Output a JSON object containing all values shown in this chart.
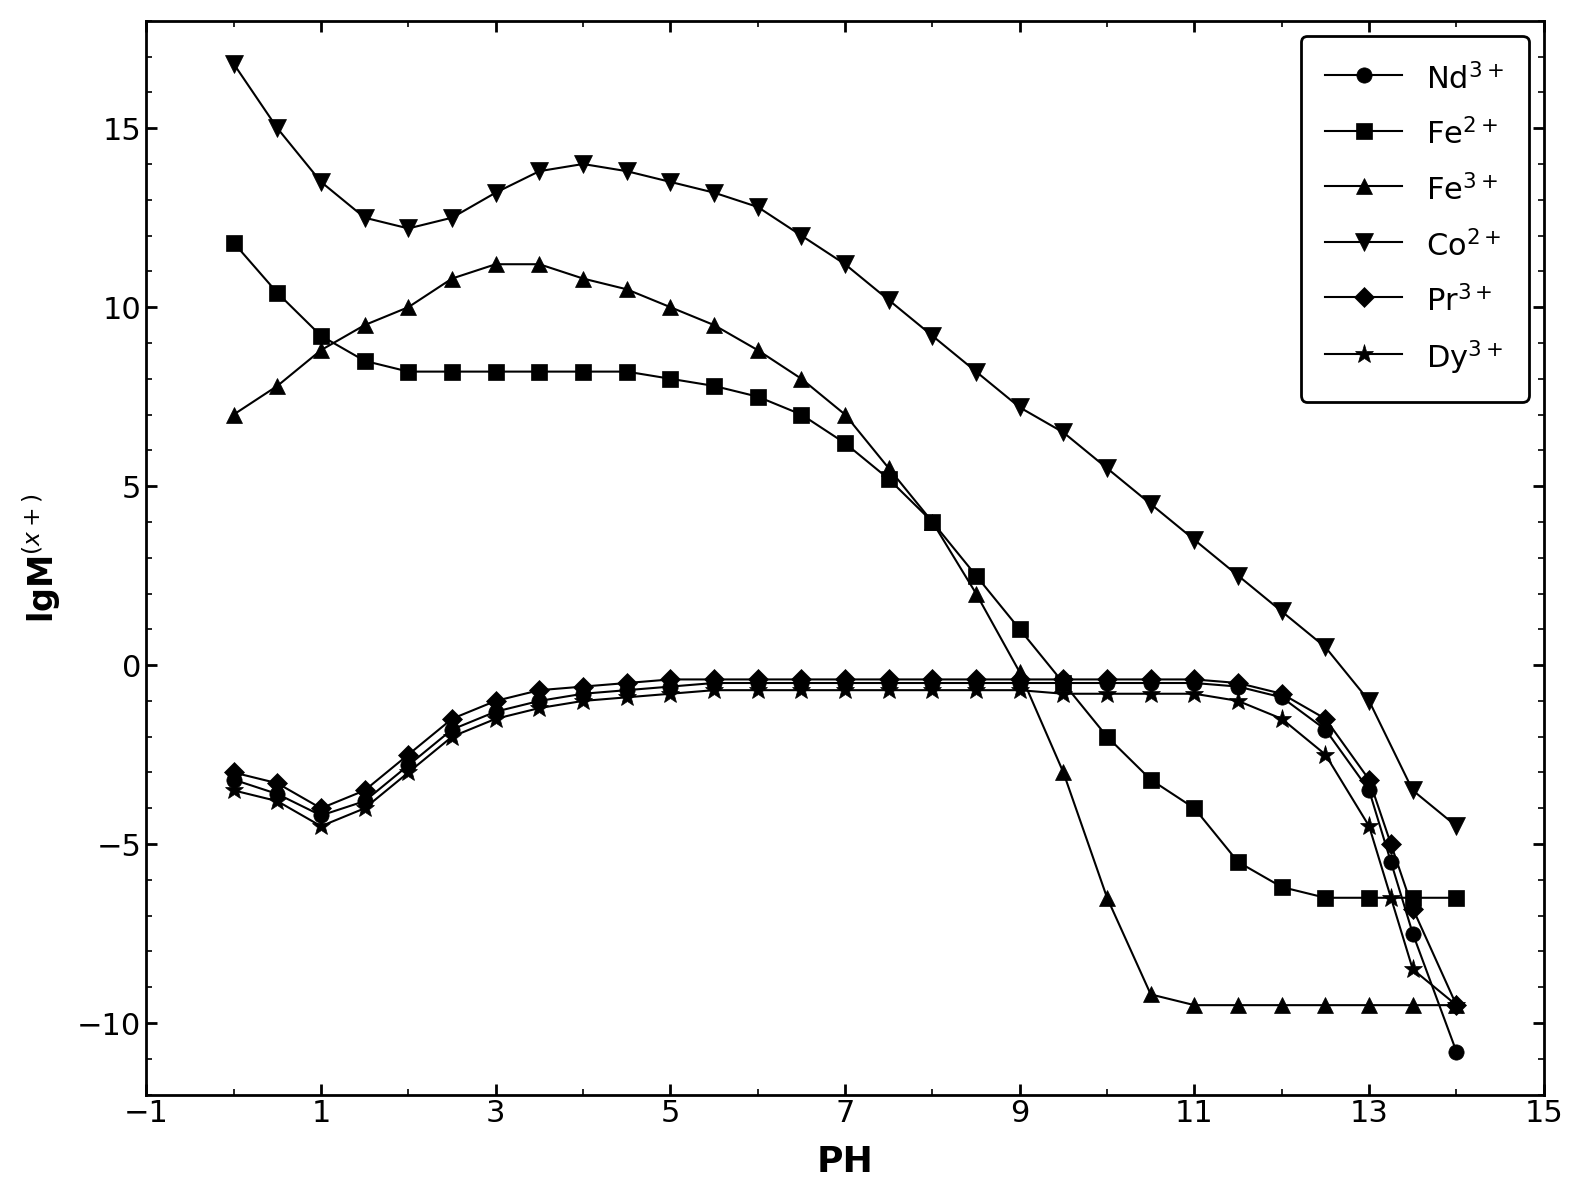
{
  "title": "",
  "xlabel": "PH",
  "ylabel": "lgM$^{(x+)}$",
  "xlim": [
    -1,
    15
  ],
  "ylim": [
    -12,
    18
  ],
  "yticks": [
    -10,
    -5,
    0,
    5,
    10,
    15
  ],
  "xticks": [
    -1,
    1,
    3,
    5,
    7,
    9,
    11,
    13,
    15
  ],
  "series": {
    "Nd3+": {
      "marker": "o",
      "label": "Nd$^{3+}$",
      "x": [
        0.0,
        0.5,
        1.0,
        1.5,
        2.0,
        2.5,
        3.0,
        3.5,
        4.0,
        4.5,
        5.0,
        5.5,
        6.0,
        6.5,
        7.0,
        7.5,
        8.0,
        8.5,
        9.0,
        9.5,
        10.0,
        10.5,
        11.0,
        11.5,
        12.0,
        12.5,
        13.0,
        13.25,
        13.5,
        14.0
      ],
      "y": [
        -3.2,
        -3.6,
        -4.2,
        -3.8,
        -2.8,
        -1.8,
        -1.3,
        -1.0,
        -0.8,
        -0.7,
        -0.6,
        -0.5,
        -0.5,
        -0.5,
        -0.5,
        -0.5,
        -0.5,
        -0.5,
        -0.5,
        -0.5,
        -0.5,
        -0.5,
        -0.5,
        -0.6,
        -0.9,
        -1.8,
        -3.5,
        -5.5,
        -7.5,
        -10.8
      ]
    },
    "Fe2+": {
      "marker": "s",
      "label": "Fe$^{2+}$",
      "x": [
        0.0,
        0.5,
        1.0,
        1.5,
        2.0,
        2.5,
        3.0,
        3.5,
        4.0,
        4.5,
        5.0,
        5.5,
        6.0,
        6.5,
        7.0,
        7.5,
        8.0,
        8.5,
        9.0,
        9.5,
        10.0,
        10.5,
        11.0,
        11.5,
        12.0,
        12.5,
        13.0,
        13.5,
        14.0
      ],
      "y": [
        11.8,
        10.4,
        9.2,
        8.5,
        8.2,
        8.2,
        8.2,
        8.2,
        8.2,
        8.2,
        8.0,
        7.8,
        7.5,
        7.0,
        6.2,
        5.2,
        4.0,
        2.5,
        1.0,
        -0.5,
        -2.0,
        -3.2,
        -4.0,
        -5.5,
        -6.2,
        -6.5,
        -6.5,
        -6.5,
        -6.5
      ]
    },
    "Fe3+": {
      "marker": "^",
      "label": "Fe$^{3+}$",
      "x": [
        0.0,
        0.5,
        1.0,
        1.5,
        2.0,
        2.5,
        3.0,
        3.5,
        4.0,
        4.5,
        5.0,
        5.5,
        6.0,
        6.5,
        7.0,
        7.5,
        8.0,
        8.5,
        9.0,
        9.5,
        10.0,
        10.5,
        11.0,
        11.5,
        12.0,
        12.5,
        13.0,
        13.5,
        14.0
      ],
      "y": [
        7.0,
        7.8,
        8.8,
        9.5,
        10.0,
        10.8,
        11.2,
        11.2,
        10.8,
        10.5,
        10.0,
        9.5,
        8.8,
        8.0,
        7.0,
        5.5,
        4.0,
        2.0,
        -0.2,
        -3.0,
        -6.5,
        -9.2,
        -9.5,
        -9.5,
        -9.5,
        -9.5,
        -9.5,
        -9.5,
        -9.5
      ]
    },
    "Co2+": {
      "marker": "v",
      "label": "Co$^{2+}$",
      "x": [
        0.0,
        0.5,
        1.0,
        1.5,
        2.0,
        2.5,
        3.0,
        3.5,
        4.0,
        4.5,
        5.0,
        5.5,
        6.0,
        6.5,
        7.0,
        7.5,
        8.0,
        8.5,
        9.0,
        9.5,
        10.0,
        10.5,
        11.0,
        11.5,
        12.0,
        12.5,
        13.0,
        13.5,
        14.0
      ],
      "y": [
        16.8,
        15.0,
        13.5,
        12.5,
        12.2,
        12.5,
        13.2,
        13.8,
        14.0,
        13.8,
        13.5,
        13.2,
        12.8,
        12.0,
        11.2,
        10.2,
        9.2,
        8.2,
        7.2,
        6.5,
        5.5,
        4.5,
        3.5,
        2.5,
        1.5,
        0.5,
        -1.0,
        -3.5,
        -4.5
      ]
    },
    "Pr3+": {
      "marker": "D",
      "label": "Pr$^{3+}$",
      "x": [
        0.0,
        0.5,
        1.0,
        1.5,
        2.0,
        2.5,
        3.0,
        3.5,
        4.0,
        4.5,
        5.0,
        5.5,
        6.0,
        6.5,
        7.0,
        7.5,
        8.0,
        8.5,
        9.0,
        9.5,
        10.0,
        10.5,
        11.0,
        11.5,
        12.0,
        12.5,
        13.0,
        13.25,
        13.5,
        14.0
      ],
      "y": [
        -3.0,
        -3.3,
        -4.0,
        -3.5,
        -2.5,
        -1.5,
        -1.0,
        -0.7,
        -0.6,
        -0.5,
        -0.4,
        -0.4,
        -0.4,
        -0.4,
        -0.4,
        -0.4,
        -0.4,
        -0.4,
        -0.4,
        -0.4,
        -0.4,
        -0.4,
        -0.4,
        -0.5,
        -0.8,
        -1.5,
        -3.2,
        -5.0,
        -6.8,
        -9.5
      ]
    },
    "Dy3+": {
      "marker": "*",
      "label": "Dy$^{3+}$",
      "x": [
        0.0,
        0.5,
        1.0,
        1.5,
        2.0,
        2.5,
        3.0,
        3.5,
        4.0,
        4.5,
        5.0,
        5.5,
        6.0,
        6.5,
        7.0,
        7.5,
        8.0,
        8.5,
        9.0,
        9.5,
        10.0,
        10.5,
        11.0,
        11.5,
        12.0,
        12.5,
        13.0,
        13.25,
        13.5,
        14.0
      ],
      "y": [
        -3.5,
        -3.8,
        -4.5,
        -4.0,
        -3.0,
        -2.0,
        -1.5,
        -1.2,
        -1.0,
        -0.9,
        -0.8,
        -0.7,
        -0.7,
        -0.7,
        -0.7,
        -0.7,
        -0.7,
        -0.7,
        -0.7,
        -0.8,
        -0.8,
        -0.8,
        -0.8,
        -1.0,
        -1.5,
        -2.5,
        -4.5,
        -6.5,
        -8.5,
        -9.5
      ]
    }
  }
}
